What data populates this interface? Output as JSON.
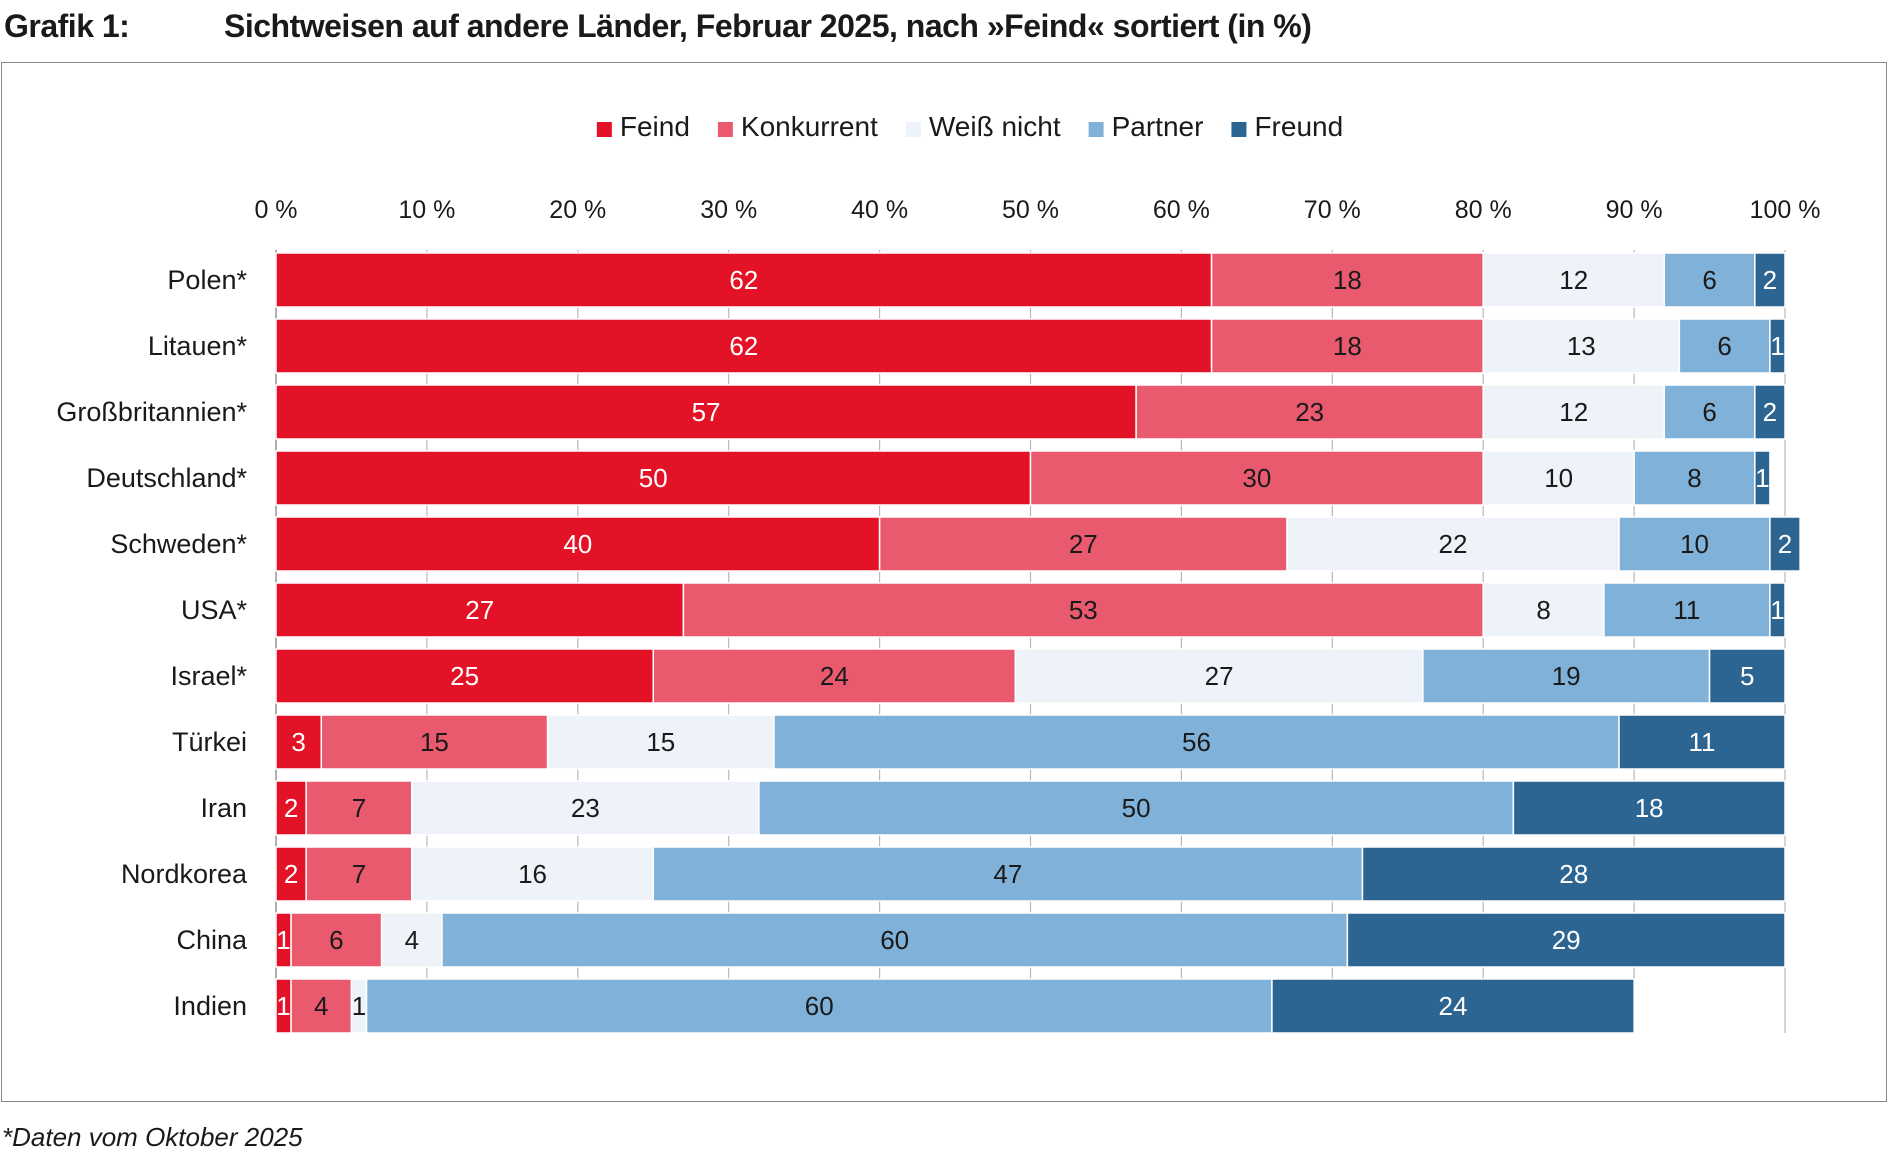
{
  "header": {
    "figure_label": "Grafik 1:",
    "title": "Sichtweisen auf andere Länder, Februar 2025, nach »Feind« sortiert (in %)"
  },
  "footnote": "*Daten vom Oktober 2025",
  "colors": {
    "feind": "#e31226",
    "konkurrent": "#ea5a6f",
    "weiss_nicht": "#eef3f9",
    "partner": "#80b2d9",
    "freund": "#2c6591",
    "label_light": "#ffffff",
    "label_dark": "#1a1a1a",
    "grid": "#b8b8b8"
  },
  "chart_data": {
    "type": "bar",
    "orientation": "horizontal",
    "stacked": true,
    "title": "Sichtweisen auf andere Länder, Februar 2025, nach »Feind« sortiert (in %)",
    "xlim": [
      0,
      100
    ],
    "x_ticks": [
      0,
      10,
      20,
      30,
      40,
      50,
      60,
      70,
      80,
      90,
      100
    ],
    "x_tick_labels": [
      "0 %",
      "10 %",
      "20 %",
      "30 %",
      "40 %",
      "50 %",
      "60 %",
      "70 %",
      "80 %",
      "90 %",
      "100 %"
    ],
    "x_axis_position": "top",
    "grid": true,
    "legend_position": "top-center",
    "categories": [
      "Polen*",
      "Litauen*",
      "Großbritannien*",
      "Deutschland*",
      "Schweden*",
      "USA*",
      "Israel*",
      "Türkei",
      "Iran",
      "Nordkorea",
      "China",
      "Indien"
    ],
    "series": [
      {
        "name": "Feind",
        "key": "feind",
        "values": [
          62,
          62,
          57,
          50,
          40,
          27,
          25,
          3,
          2,
          2,
          1,
          1
        ]
      },
      {
        "name": "Konkurrent",
        "key": "konkurrent",
        "values": [
          18,
          18,
          23,
          30,
          27,
          53,
          24,
          15,
          7,
          7,
          6,
          4
        ]
      },
      {
        "name": "Weiß nicht",
        "key": "weiss_nicht",
        "values": [
          12,
          13,
          12,
          10,
          22,
          8,
          27,
          15,
          23,
          16,
          4,
          1
        ]
      },
      {
        "name": "Partner",
        "key": "partner",
        "values": [
          6,
          6,
          6,
          8,
          10,
          11,
          19,
          56,
          50,
          47,
          60,
          60
        ]
      },
      {
        "name": "Freund",
        "key": "freund",
        "values": [
          2,
          1,
          2,
          1,
          2,
          1,
          5,
          11,
          18,
          28,
          29,
          24
        ]
      }
    ]
  }
}
